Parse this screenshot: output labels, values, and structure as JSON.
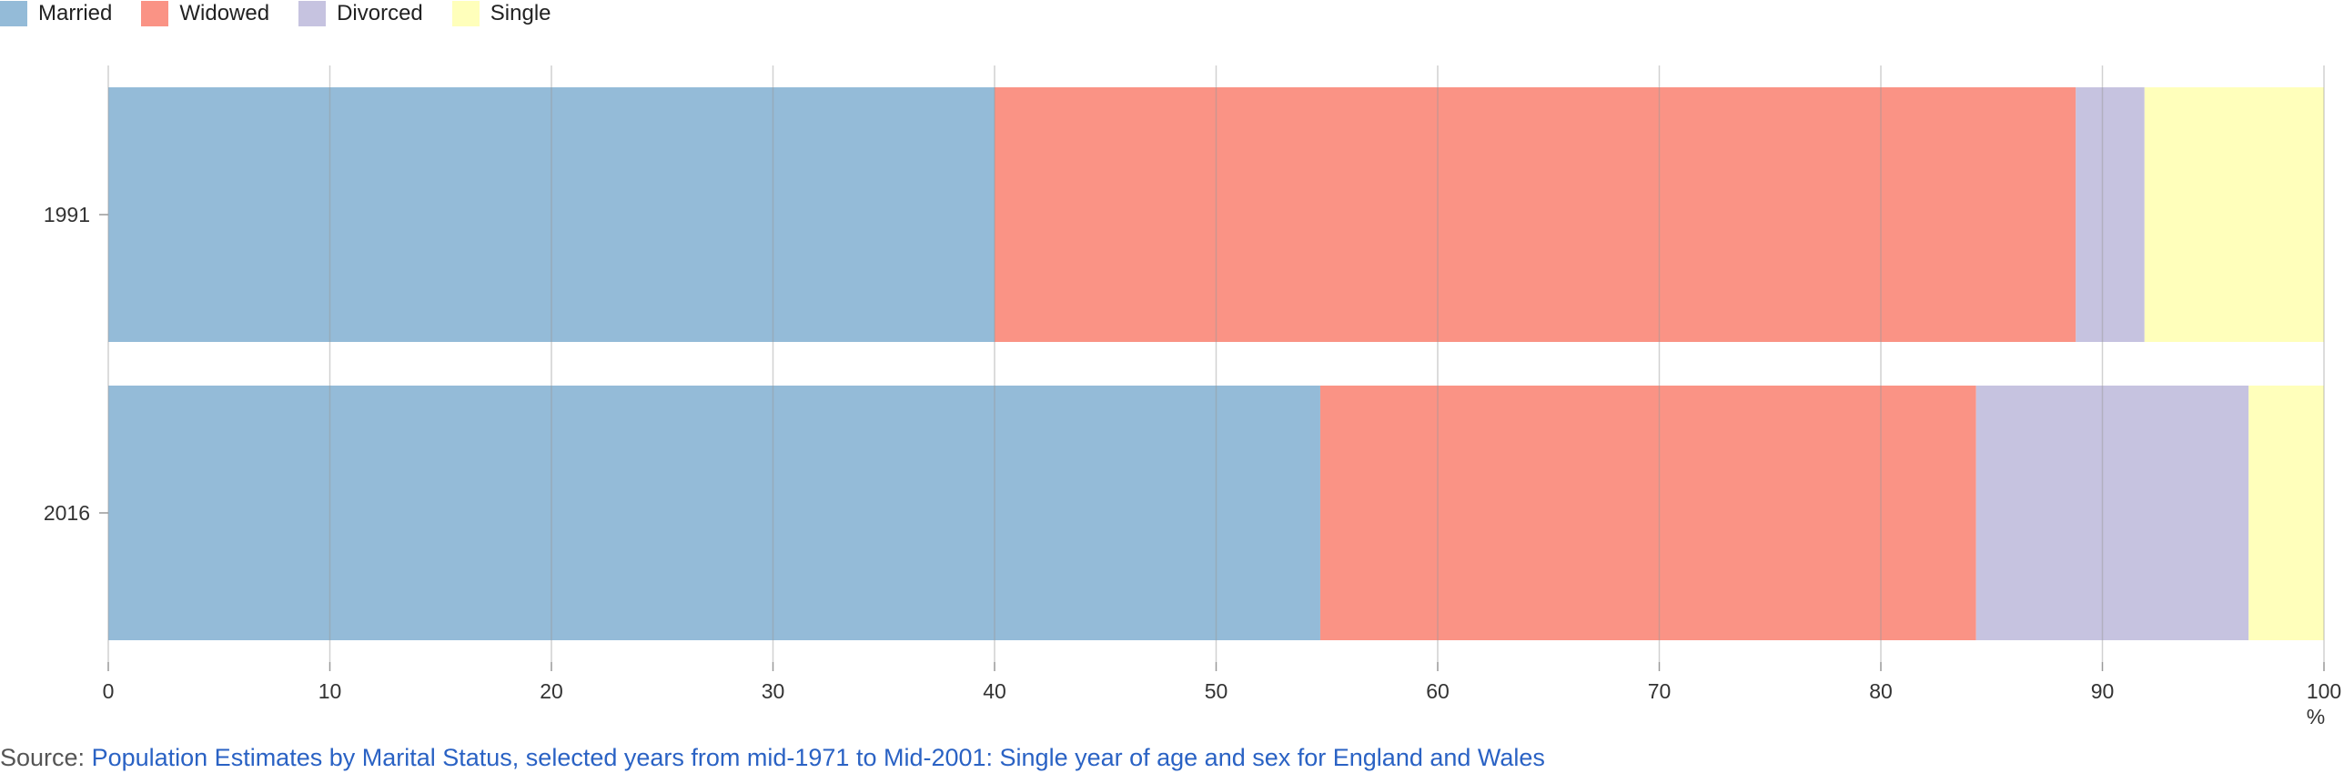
{
  "legend": [
    {
      "label": "Married",
      "color": "#94bbd8"
    },
    {
      "label": "Widowed",
      "color": "#fa9385"
    },
    {
      "label": "Divorced",
      "color": "#c6c3e0"
    },
    {
      "label": "Single",
      "color": "#ffffbb"
    }
  ],
  "chart_data": {
    "type": "bar",
    "orientation": "horizontal",
    "stacked": true,
    "categories": [
      "1991",
      "2016"
    ],
    "series": [
      {
        "name": "Married",
        "values": [
          40.0,
          54.7
        ],
        "color": "#94bbd8"
      },
      {
        "name": "Widowed",
        "values": [
          48.8,
          29.6
        ],
        "color": "#fa9385"
      },
      {
        "name": "Divorced",
        "values": [
          3.1,
          12.3
        ],
        "color": "#c6c3e0"
      },
      {
        "name": "Single",
        "values": [
          8.1,
          3.4
        ],
        "color": "#ffffbb"
      }
    ],
    "xlim": [
      0,
      100
    ],
    "xticks": [
      0,
      10,
      20,
      30,
      40,
      50,
      60,
      70,
      80,
      90,
      100
    ],
    "xunit": "%",
    "grid": true,
    "legend_position": "top-left"
  },
  "source": {
    "prefix": "Source:",
    "link_text": "Population Estimates by Marital Status, selected years from mid-1971 to Mid-2001: Single year of age and sex for England and Wales"
  }
}
